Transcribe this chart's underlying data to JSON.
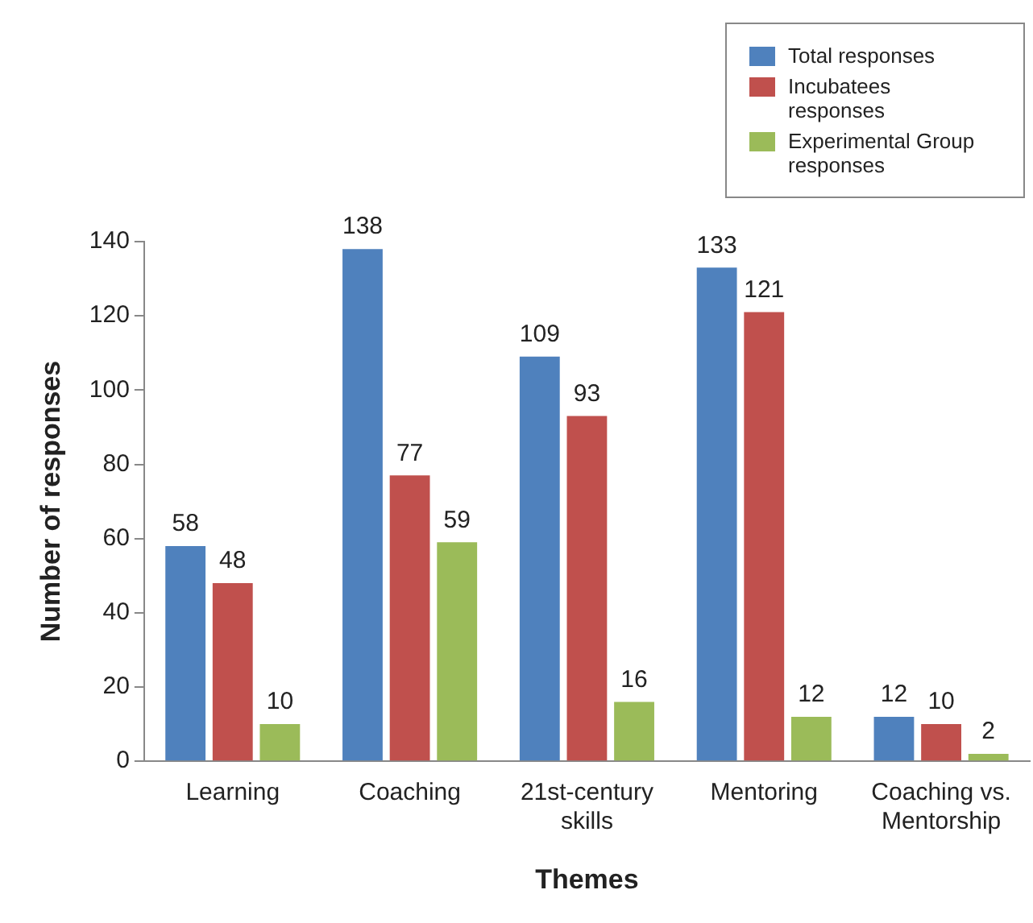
{
  "chart_data": {
    "type": "bar",
    "xlabel": "Themes",
    "ylabel": "Number of responses",
    "categories": [
      "Learning",
      "Coaching",
      "21st-century skills",
      "Mentoring",
      "Coaching vs. Mentorship"
    ],
    "series": [
      {
        "name": "Total responses",
        "color": "#4f81bd",
        "values": [
          58,
          138,
          109,
          133,
          12
        ]
      },
      {
        "name": "Incubatees responses",
        "color": "#c0504d",
        "values": [
          48,
          77,
          93,
          121,
          10
        ]
      },
      {
        "name": "Experimental Group responses",
        "color": "#9bbb59",
        "values": [
          10,
          59,
          16,
          12,
          2
        ]
      }
    ],
    "ylim": [
      0,
      140
    ],
    "yticks": [
      0,
      20,
      40,
      60,
      80,
      100,
      120,
      140
    ],
    "grid": false,
    "legend": "top right",
    "data_labels": true
  }
}
